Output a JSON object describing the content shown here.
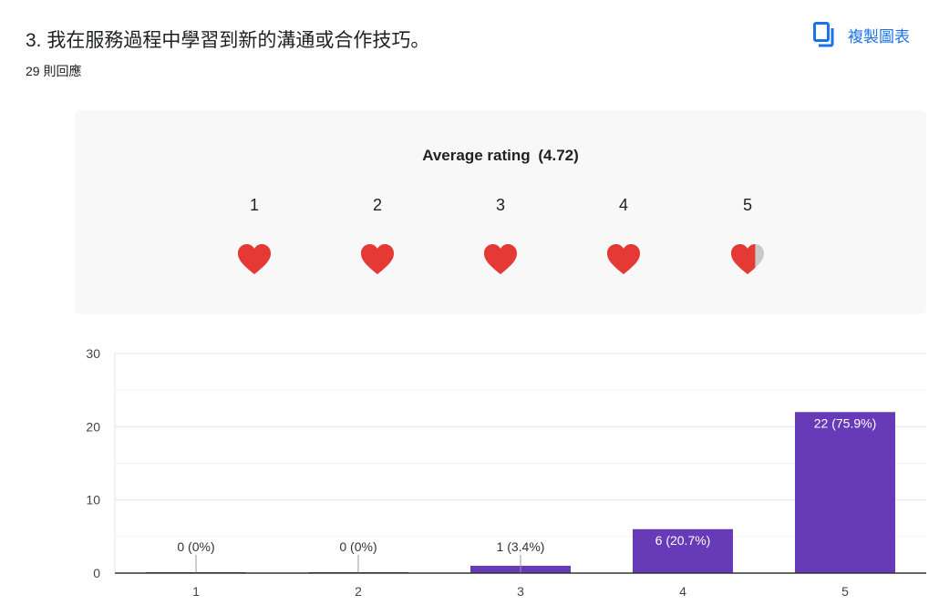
{
  "question": {
    "title": "3. 我在服務過程中學習到新的溝通或合作技巧。",
    "responses": "29 則回應"
  },
  "copy_button": {
    "label": "複製圖表",
    "icon": "copy-icon"
  },
  "rating": {
    "title": "Average rating",
    "value": "(4.72)",
    "average": 4.72,
    "scale": [
      "1",
      "2",
      "3",
      "4",
      "5"
    ],
    "icon": "heart-icon",
    "filled_color": "#e53935",
    "empty_color": "#c9c9c9"
  },
  "chart_data": {
    "type": "bar",
    "categories": [
      "1",
      "2",
      "3",
      "4",
      "5"
    ],
    "values": [
      0,
      0,
      1,
      6,
      22
    ],
    "labels": [
      "0 (0%)",
      "0 (0%)",
      "1 (3.4%)",
      "6 (20.7%)",
      "22 (75.9%)"
    ],
    "ylim": [
      0,
      30
    ],
    "yticks": [
      0,
      10,
      20,
      30
    ],
    "grid": true,
    "bar_color": "#673ab7"
  }
}
